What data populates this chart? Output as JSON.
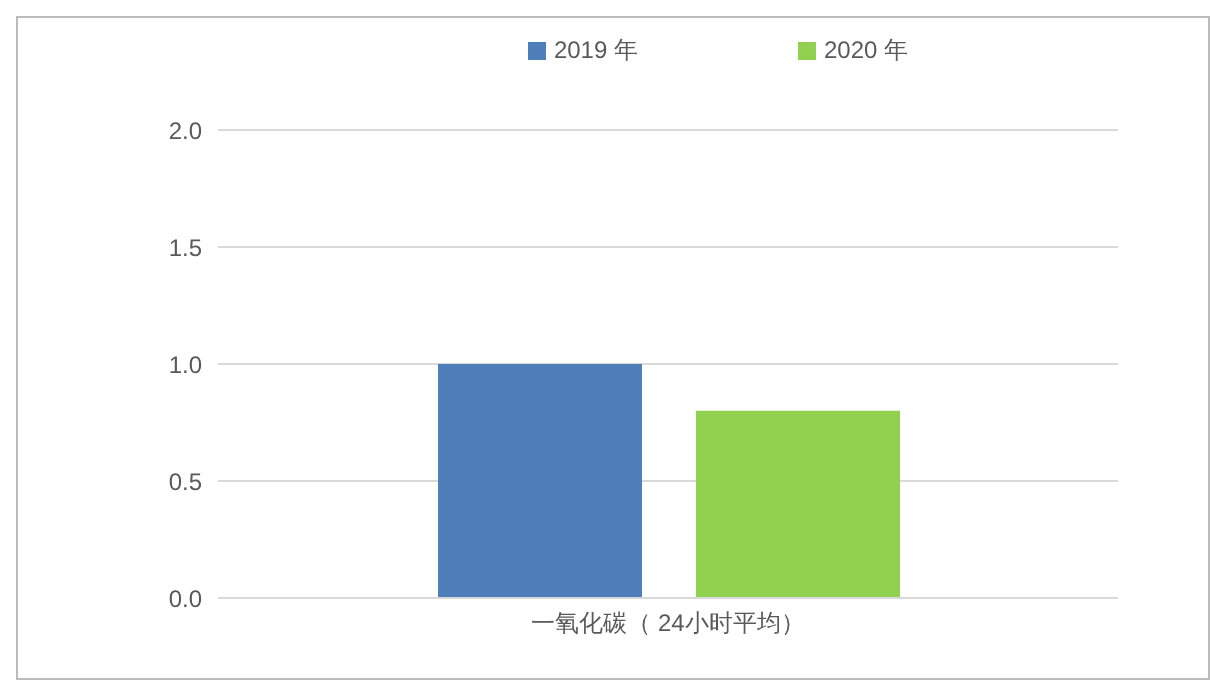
{
  "chart_data": {
    "type": "bar",
    "categories": [
      "一氧化碳（ 24小时平均）"
    ],
    "series": [
      {
        "name": "2019 年",
        "color": "#4e7fbb",
        "values": [
          1.0
        ]
      },
      {
        "name": "2020 年",
        "color": "#92d050",
        "values": [
          0.8
        ]
      }
    ],
    "ylim": [
      0,
      2
    ],
    "yticks": [
      {
        "value": 0,
        "label": "0.0"
      },
      {
        "value": 0.5,
        "label": "0.5"
      },
      {
        "value": 1,
        "label": "1.0"
      },
      {
        "value": 1.5,
        "label": "1.5"
      },
      {
        "value": 2,
        "label": "2.0"
      }
    ],
    "grid": "y",
    "legend": "top right"
  }
}
